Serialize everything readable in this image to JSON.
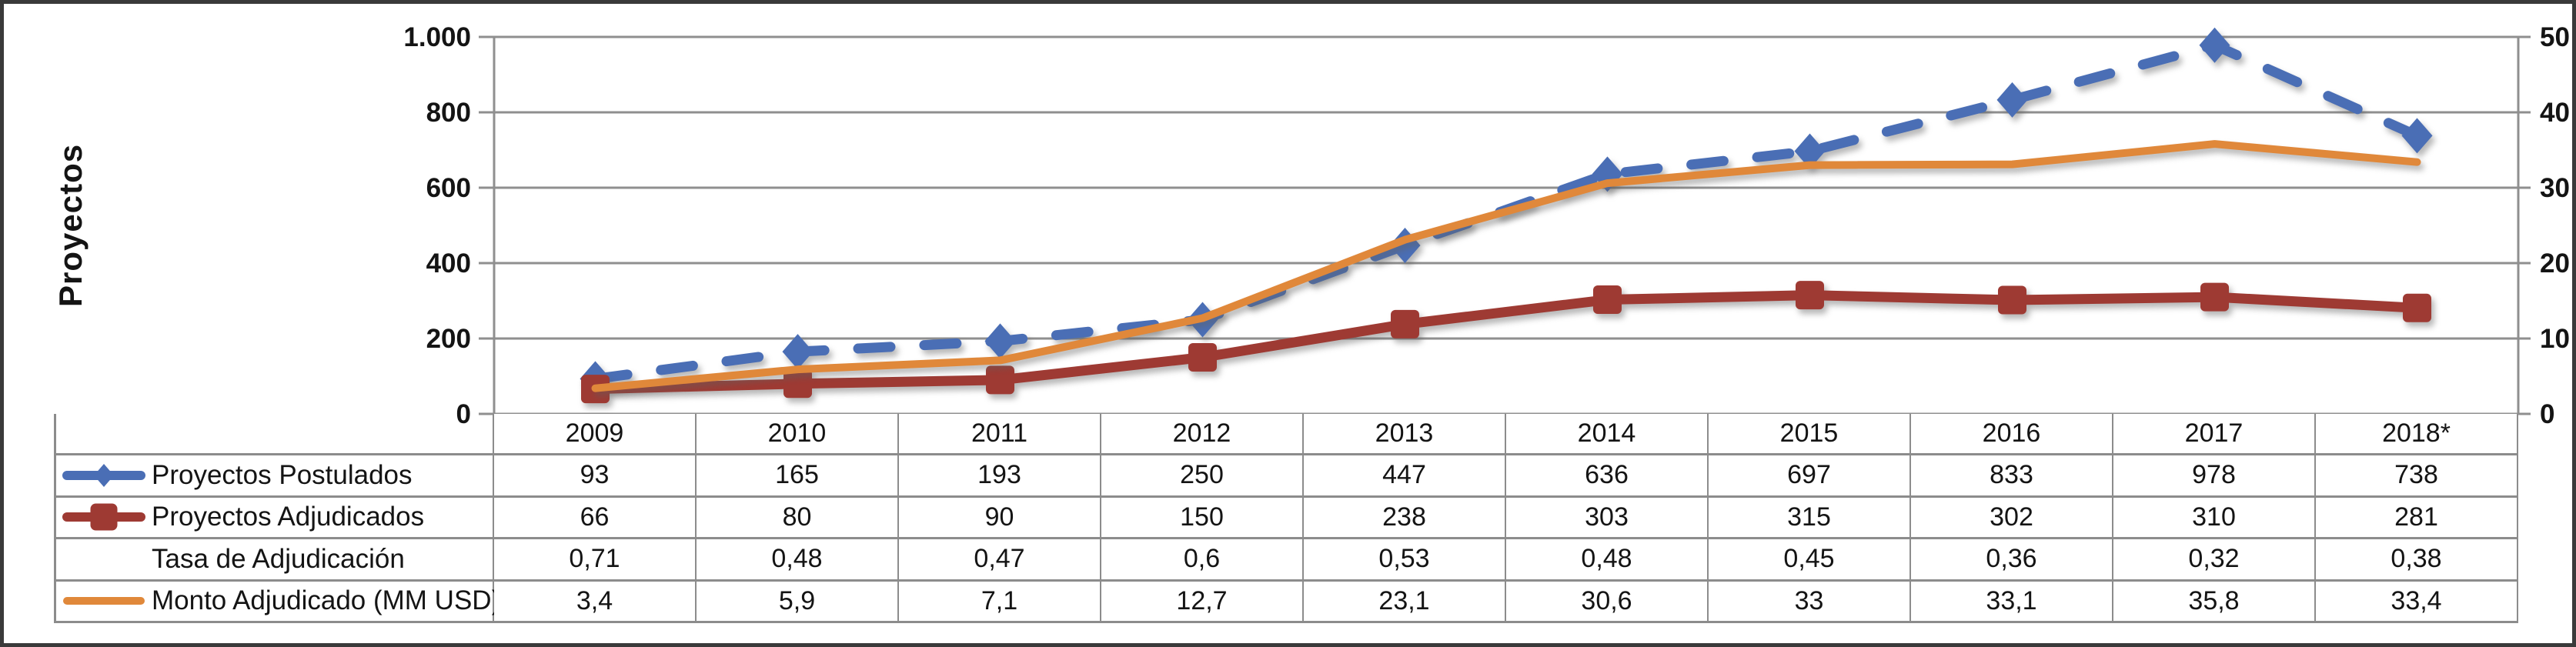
{
  "figure": {
    "background": "#ffffff",
    "frame_color": "#3a3a3a",
    "table_border_color": "#8c8c8c",
    "gridline_color": "#8f8f8f",
    "text_color": "#141414"
  },
  "chart_data": {
    "type": "line",
    "title": "",
    "x_categories": [
      "2009",
      "2010",
      "2011",
      "2012",
      "2013",
      "2014",
      "2015",
      "2016",
      "2017",
      "2018*"
    ],
    "left_axis": {
      "label": "Proyectos",
      "min": 0,
      "max": 1000,
      "step": 200,
      "tick_labels": [
        "0",
        "200",
        "400",
        "600",
        "800",
        "1.000"
      ]
    },
    "right_axis": {
      "label": "",
      "min": 0,
      "max": 50,
      "step": 10,
      "tick_labels": [
        "0",
        "10",
        "20",
        "30",
        "40",
        "50"
      ]
    },
    "grid": true,
    "legend_position": "table-left-column",
    "series": [
      {
        "name": "Proyectos Postulados",
        "axis": "left",
        "plotted": true,
        "color": "#4a6eb5",
        "line_style": "dashed",
        "marker": "diamond",
        "values": [
          93,
          165,
          193,
          250,
          447,
          636,
          697,
          833,
          978,
          738
        ],
        "display_values": [
          "93",
          "165",
          "193",
          "250",
          "447",
          "636",
          "697",
          "833",
          "978",
          "738"
        ]
      },
      {
        "name": "Proyectos Adjudicados",
        "axis": "left",
        "plotted": true,
        "color": "#9e3a33",
        "line_style": "solid",
        "marker": "square",
        "values": [
          66,
          80,
          90,
          150,
          238,
          303,
          315,
          302,
          310,
          281
        ],
        "display_values": [
          "66",
          "80",
          "90",
          "150",
          "238",
          "303",
          "315",
          "302",
          "310",
          "281"
        ]
      },
      {
        "name": "Tasa de Adjudicación",
        "axis": "none",
        "plotted": false,
        "color": null,
        "line_style": "none",
        "marker": "none",
        "values": [
          0.71,
          0.48,
          0.47,
          0.6,
          0.53,
          0.48,
          0.45,
          0.36,
          0.32,
          0.38
        ],
        "display_values": [
          "0,71",
          "0,48",
          "0,47",
          "0,6",
          "0,53",
          "0,48",
          "0,45",
          "0,36",
          "0,32",
          "0,38"
        ]
      },
      {
        "name": "Monto Adjudicado (MM USD)",
        "axis": "right",
        "plotted": true,
        "color": "#e0883a",
        "line_style": "solid",
        "marker": "none",
        "values": [
          3.4,
          5.9,
          7.1,
          12.7,
          23.1,
          30.6,
          33,
          33.1,
          35.8,
          33.4
        ],
        "display_values": [
          "3,4",
          "5,9",
          "7,1",
          "12,7",
          "23,1",
          "30,6",
          "33",
          "33,1",
          "35,8",
          "33,4"
        ]
      }
    ]
  }
}
